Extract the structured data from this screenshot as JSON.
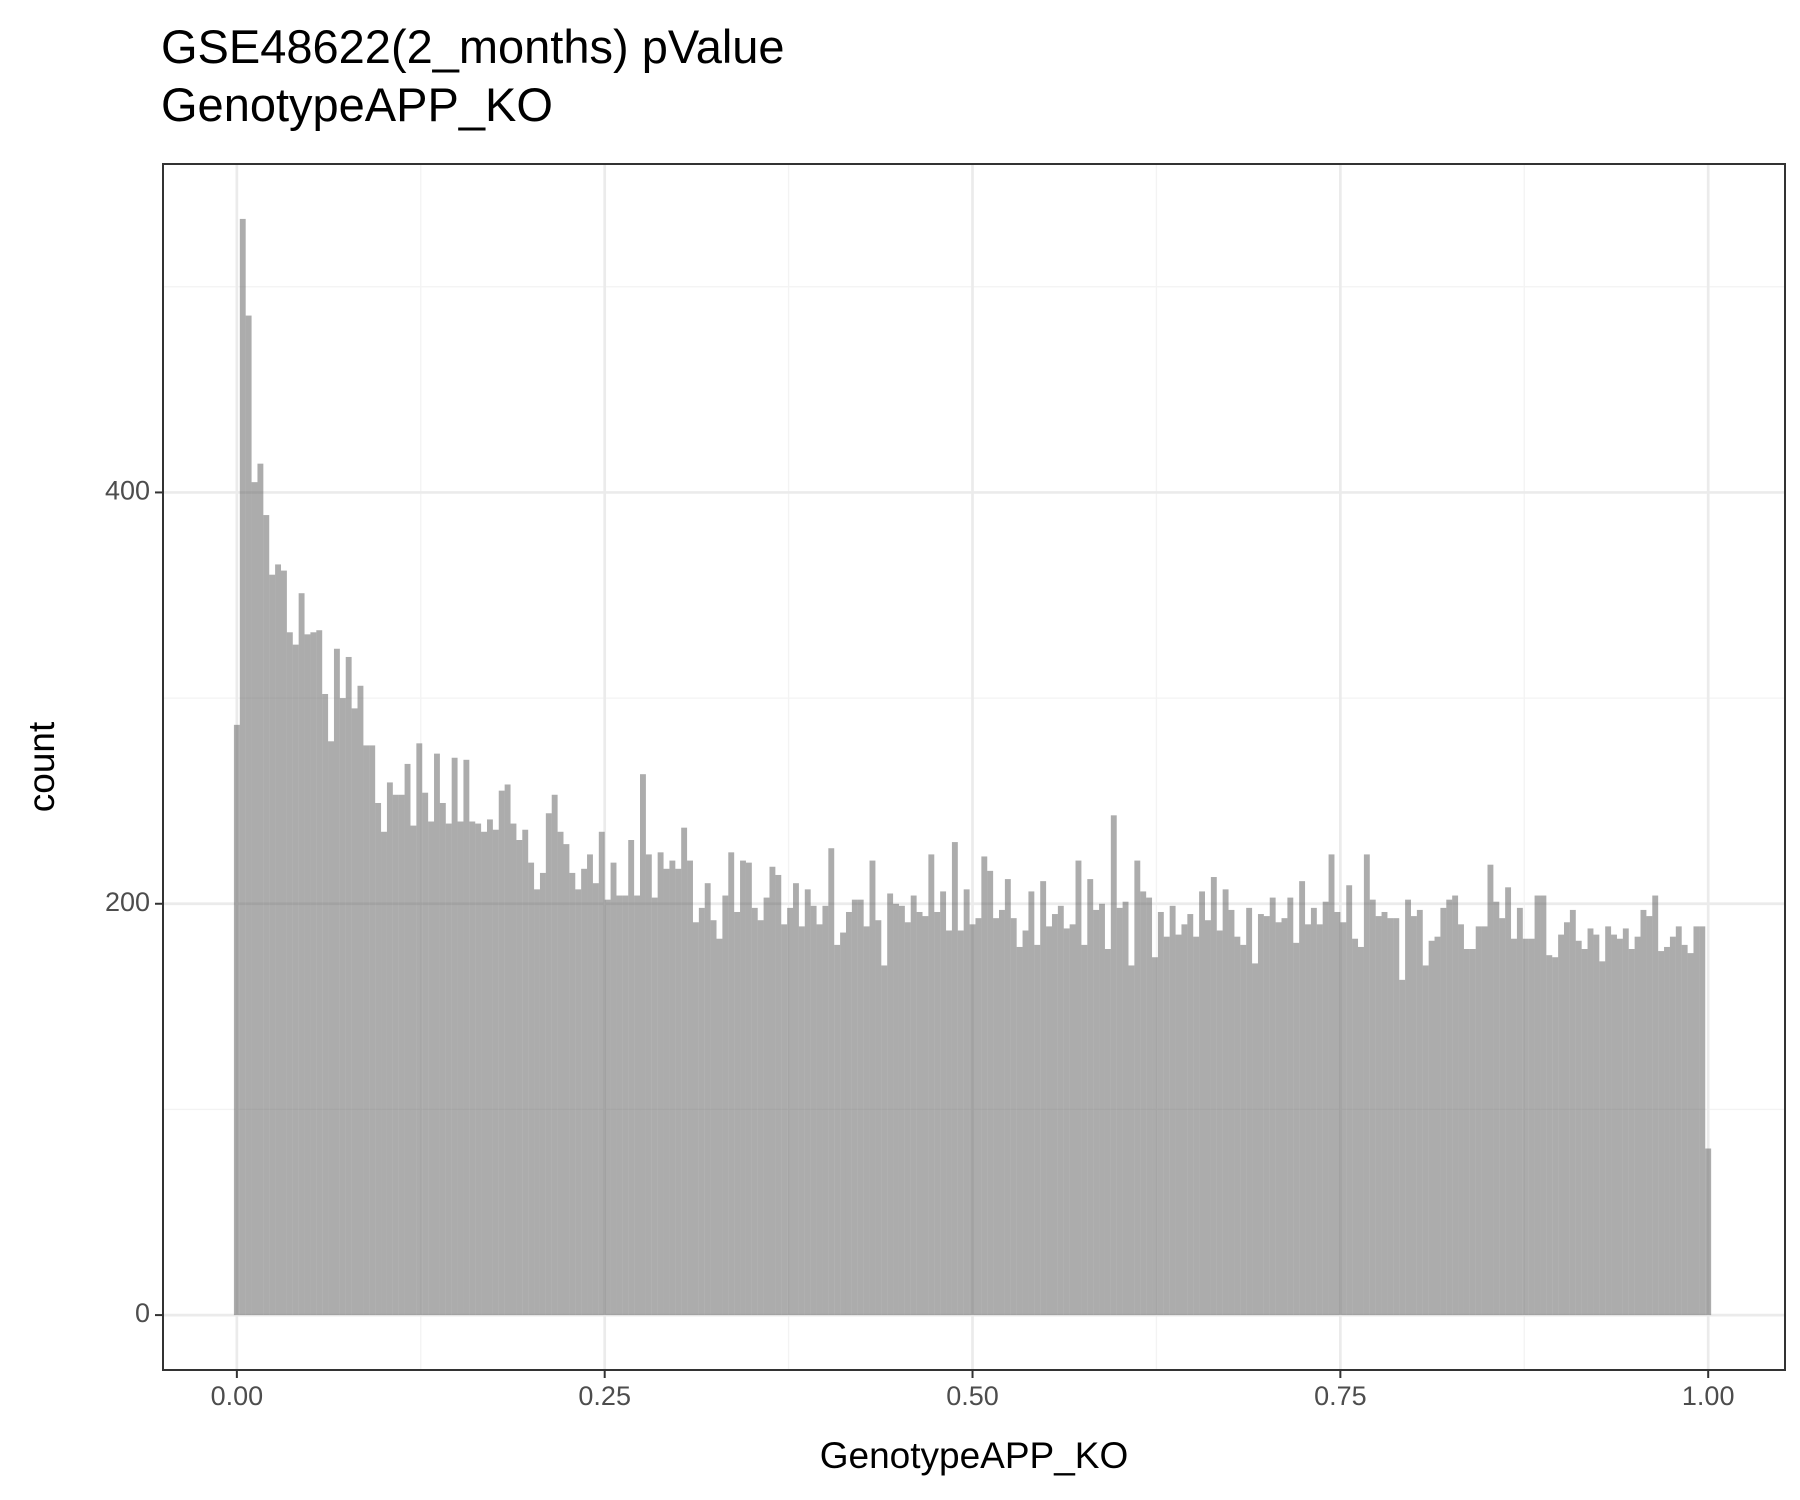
{
  "chart_data": {
    "type": "histogram",
    "title": [
      "GSE48622(2_months) pValue",
      "GenotypeAPP_KO"
    ],
    "x_label": "GenotypeAPP_KO",
    "y_label": "count",
    "color": "#595959",
    "opacity": 0.5,
    "grid": true,
    "xlim": [
      -0.0502,
      1.0522
    ],
    "ylim": [
      -26.7,
      559.7
    ],
    "xticks": [
      {
        "value": 0,
        "label": "0.00"
      },
      {
        "value": 0.25,
        "label": "0.25"
      },
      {
        "value": 0.5,
        "label": "0.50"
      },
      {
        "value": 0.75,
        "label": "0.75"
      },
      {
        "value": 1,
        "label": "1.00"
      }
    ],
    "yticks": [
      0,
      200,
      400
    ],
    "x_minor_grid": [
      0.125,
      0.375,
      0.625,
      0.875
    ],
    "y_minor_grid": [
      100,
      300,
      500
    ],
    "bins": [
      -0.002,
      0.002,
      0.006,
      0.01,
      0.014,
      0.018,
      0.022,
      0.026,
      0.03,
      0.034,
      0.038,
      0.042,
      0.046,
      0.05,
      0.054,
      0.058,
      0.062,
      0.066,
      0.07,
      0.074,
      0.078,
      0.082,
      0.086,
      0.09,
      0.094,
      0.098,
      0.102,
      0.106,
      0.11,
      0.114,
      0.118,
      0.122,
      0.126,
      0.13,
      0.134,
      0.138,
      0.142,
      0.146,
      0.15,
      0.154,
      0.158,
      0.162,
      0.166,
      0.17,
      0.174,
      0.178,
      0.182,
      0.186,
      0.19,
      0.194,
      0.198,
      0.202,
      0.206,
      0.21,
      0.214,
      0.218,
      0.222,
      0.226,
      0.23,
      0.234,
      0.238,
      0.242,
      0.246,
      0.25,
      0.254,
      0.258,
      0.262,
      0.266,
      0.27,
      0.274,
      0.278,
      0.282,
      0.286,
      0.29,
      0.294,
      0.298,
      0.302,
      0.306,
      0.31,
      0.314,
      0.318,
      0.322,
      0.326,
      0.33,
      0.334,
      0.338,
      0.342,
      0.346,
      0.35,
      0.354,
      0.358,
      0.362,
      0.366,
      0.37,
      0.374,
      0.378,
      0.382,
      0.386,
      0.39,
      0.394,
      0.398,
      0.402,
      0.406,
      0.41,
      0.414,
      0.418,
      0.422,
      0.426,
      0.43,
      0.434,
      0.438,
      0.442,
      0.446,
      0.45,
      0.454,
      0.458,
      0.462,
      0.466,
      0.47,
      0.474,
      0.478,
      0.482,
      0.486,
      0.49,
      0.494,
      0.498,
      0.502,
      0.506,
      0.51,
      0.514,
      0.518,
      0.522,
      0.526,
      0.53,
      0.534,
      0.538,
      0.542,
      0.546,
      0.55,
      0.554,
      0.558,
      0.562,
      0.566,
      0.57,
      0.574,
      0.578,
      0.582,
      0.586,
      0.59,
      0.594,
      0.598,
      0.602,
      0.606,
      0.61,
      0.614,
      0.618,
      0.622,
      0.626,
      0.63,
      0.634,
      0.638,
      0.642,
      0.646,
      0.65,
      0.654,
      0.658,
      0.662,
      0.666,
      0.67,
      0.674,
      0.678,
      0.682,
      0.686,
      0.69,
      0.694,
      0.698,
      0.702,
      0.706,
      0.71,
      0.714,
      0.718,
      0.722,
      0.726,
      0.73,
      0.734,
      0.738,
      0.742,
      0.746,
      0.75,
      0.754,
      0.758,
      0.762,
      0.766,
      0.77,
      0.774,
      0.778,
      0.782,
      0.786,
      0.79,
      0.794,
      0.798,
      0.802,
      0.806,
      0.81,
      0.814,
      0.818,
      0.822,
      0.826,
      0.83,
      0.834,
      0.838,
      0.842,
      0.846,
      0.85,
      0.854,
      0.858,
      0.862,
      0.866,
      0.87,
      0.874,
      0.878,
      0.882,
      0.886,
      0.89,
      0.894,
      0.898,
      0.902,
      0.906,
      0.91,
      0.914,
      0.918,
      0.922,
      0.926,
      0.93,
      0.934,
      0.938,
      0.942,
      0.946,
      0.95,
      0.954,
      0.958,
      0.962,
      0.966,
      0.97,
      0.974,
      0.978,
      0.982,
      0.986,
      0.99,
      0.994,
      0.998,
      1.002
    ],
    "counts": [
      287,
      533,
      486,
      405,
      414,
      389,
      360,
      365,
      362,
      332,
      326,
      351,
      331,
      332,
      333,
      302,
      279,
      324,
      300,
      320,
      295,
      306,
      277,
      277,
      249,
      235,
      259,
      253,
      253,
      268,
      238,
      278,
      254,
      240,
      273,
      249,
      239,
      271,
      240,
      270,
      240,
      239,
      235,
      241,
      236,
      255,
      258,
      239,
      231,
      236,
      220,
      207,
      215,
      244,
      253,
      235,
      229,
      215,
      207,
      217,
      224,
      210,
      235,
      202,
      220,
      204,
      204,
      231,
      204,
      263,
      224,
      203,
      225,
      217,
      221,
      217,
      237,
      221,
      191,
      198,
      210,
      192,
      183,
      204,
      225,
      196,
      221,
      220,
      198,
      192,
      203,
      218,
      214,
      190,
      198,
      210,
      189,
      207,
      199,
      190,
      199,
      227,
      180,
      186,
      196,
      202,
      202,
      189,
      221,
      192,
      170,
      205,
      200,
      199,
      191,
      204,
      196,
      194,
      224,
      196,
      206,
      187,
      230,
      187,
      207,
      190,
      193,
      223,
      216,
      193,
      197,
      212,
      193,
      179,
      187,
      206,
      180,
      211,
      189,
      195,
      199,
      188,
      190,
      221,
      180,
      212,
      197,
      200,
      178,
      243,
      198,
      201,
      170,
      221,
      206,
      203,
      174,
      196,
      184,
      199,
      185,
      190,
      195,
      184,
      206,
      192,
      213,
      187,
      207,
      197,
      184,
      180,
      198,
      171,
      195,
      194,
      203,
      191,
      193,
      203,
      181,
      211,
      190,
      198,
      190,
      201,
      224,
      196,
      191,
      209,
      183,
      179,
      224,
      202,
      194,
      196,
      193,
      193,
      163,
      202,
      194,
      197,
      170,
      182,
      184,
      198,
      202,
      204,
      190,
      178,
      178,
      189,
      189,
      219,
      201,
      193,
      208,
      183,
      198,
      183,
      183,
      204,
      204,
      175,
      174,
      185,
      191,
      197,
      182,
      178,
      188,
      185,
      172,
      189,
      185,
      183,
      188,
      178,
      184,
      197,
      194,
      204,
      177,
      179,
      184,
      189,
      180,
      176,
      189,
      189,
      81
    ]
  }
}
